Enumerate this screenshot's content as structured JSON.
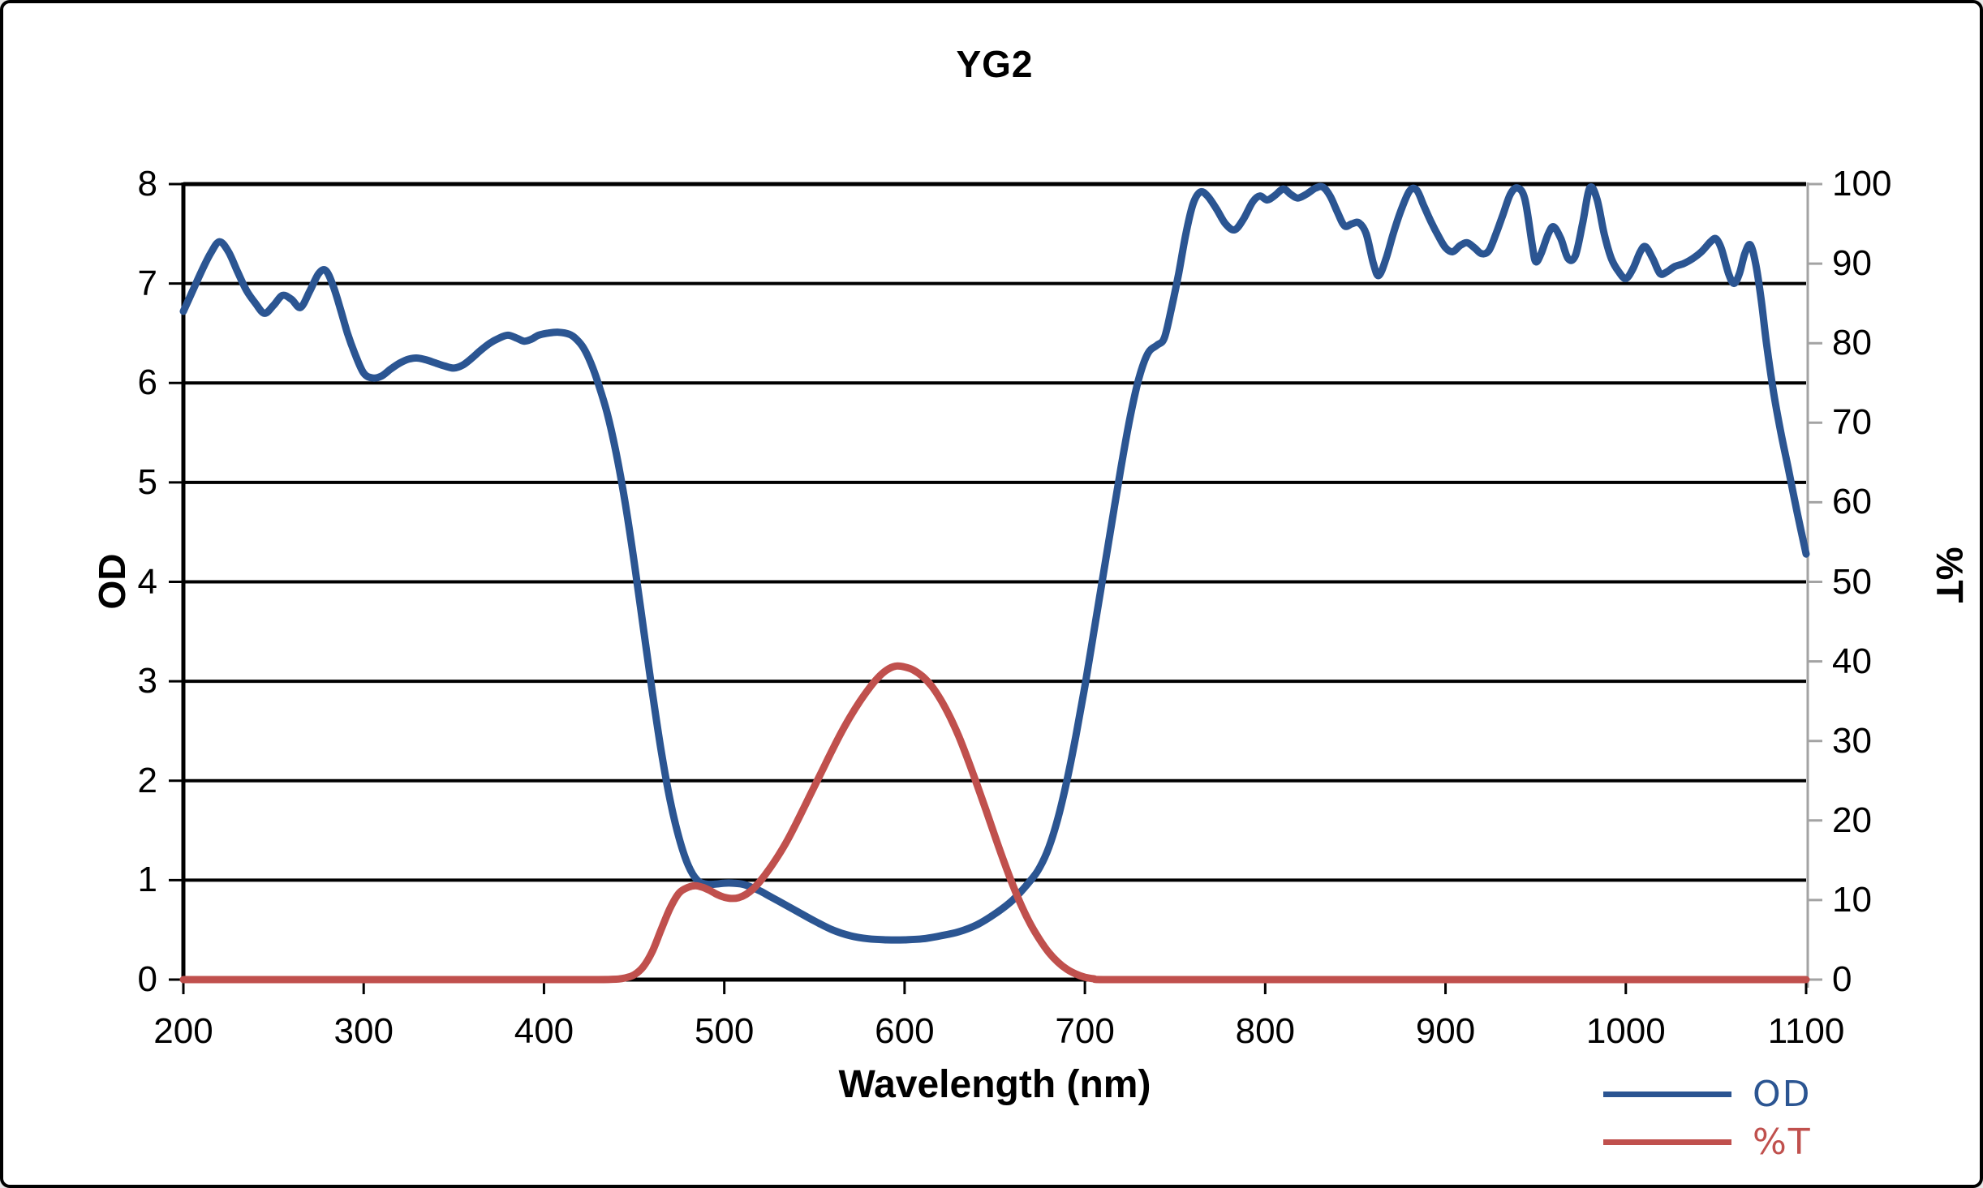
{
  "page": {
    "background": "#ffffff",
    "frame_border_color": "#000000"
  },
  "chart_data": {
    "type": "line",
    "title": "YG2",
    "xlabel": "Wavelength (nm)",
    "ylabel_left": "OD",
    "ylabel_right": "%T",
    "xlim": [
      200,
      1100
    ],
    "ylim_left": [
      0,
      8
    ],
    "ylim_right": [
      0,
      100
    ],
    "x_ticks": [
      200,
      300,
      400,
      500,
      600,
      700,
      800,
      900,
      1000,
      1100
    ],
    "y_left_ticks": [
      0,
      1,
      2,
      3,
      4,
      5,
      6,
      7,
      8
    ],
    "y_right_ticks": [
      0,
      10,
      20,
      30,
      40,
      50,
      60,
      70,
      80,
      90,
      100
    ],
    "grid": "horizontal black gridlines at each left-axis integer",
    "legend_position": "bottom-right",
    "colors": {
      "od_line": "#2B5592",
      "t_line": "#C0504D",
      "gridline": "#000000",
      "right_axis": "#A3A3A3",
      "text": "#000000"
    },
    "legend": [
      {
        "label": "OD",
        "color": "#2B5592"
      },
      {
        "label": "%T",
        "color": "#C0504D"
      }
    ],
    "series": [
      {
        "name": "OD",
        "axis": "left",
        "color": "#2B5592",
        "x": [
          200,
          205,
          210,
          215,
          220,
          225,
          230,
          235,
          240,
          245,
          250,
          255,
          260,
          265,
          270,
          275,
          279,
          283,
          287,
          291,
          295,
          300,
          305,
          310,
          315,
          320,
          325,
          330,
          335,
          340,
          345,
          350,
          355,
          360,
          365,
          370,
          375,
          380,
          385,
          389,
          393,
          397,
          402,
          408,
          414,
          418,
          422,
          426,
          430,
          435,
          440,
          445,
          450,
          455,
          460,
          465,
          470,
          475,
          480,
          485,
          490,
          495,
          500,
          505,
          510,
          515,
          520,
          525,
          530,
          540,
          550,
          560,
          570,
          580,
          590,
          600,
          610,
          620,
          630,
          640,
          650,
          660,
          670,
          675,
          680,
          685,
          690,
          695,
          700,
          705,
          710,
          715,
          720,
          725,
          730,
          735,
          740,
          744,
          748,
          752,
          756,
          760,
          764,
          768,
          773,
          778,
          783,
          788,
          793,
          797,
          801,
          805,
          810,
          814,
          818,
          823,
          828,
          832,
          836,
          840,
          844,
          848,
          852,
          856,
          860,
          863,
          867,
          871,
          875,
          880,
          884,
          888,
          892,
          896,
          900,
          904,
          908,
          912,
          916,
          920,
          924,
          928,
          932,
          936,
          940,
          944,
          948,
          950,
          953,
          957,
          960,
          964,
          968,
          972,
          976,
          980,
          984,
          988,
          992,
          996,
          1000,
          1004,
          1008,
          1011,
          1015,
          1019,
          1023,
          1027,
          1032,
          1037,
          1042,
          1047,
          1050,
          1053,
          1057,
          1060,
          1063,
          1066,
          1069,
          1072,
          1075,
          1078,
          1082,
          1086,
          1090,
          1095,
          1100
        ],
        "y": [
          6.72,
          6.92,
          7.12,
          7.3,
          7.42,
          7.32,
          7.12,
          6.93,
          6.8,
          6.7,
          6.78,
          6.88,
          6.84,
          6.76,
          6.92,
          7.1,
          7.13,
          6.98,
          6.75,
          6.5,
          6.3,
          6.1,
          6.05,
          6.07,
          6.14,
          6.2,
          6.24,
          6.25,
          6.23,
          6.2,
          6.17,
          6.15,
          6.18,
          6.25,
          6.33,
          6.4,
          6.45,
          6.48,
          6.45,
          6.42,
          6.44,
          6.48,
          6.5,
          6.51,
          6.49,
          6.44,
          6.35,
          6.2,
          6.0,
          5.7,
          5.3,
          4.8,
          4.2,
          3.55,
          2.9,
          2.3,
          1.8,
          1.42,
          1.15,
          1.0,
          0.96,
          0.96,
          0.97,
          0.97,
          0.96,
          0.93,
          0.89,
          0.84,
          0.79,
          0.69,
          0.59,
          0.5,
          0.44,
          0.41,
          0.4,
          0.4,
          0.41,
          0.44,
          0.48,
          0.55,
          0.66,
          0.8,
          1.0,
          1.13,
          1.33,
          1.62,
          2.0,
          2.45,
          2.95,
          3.5,
          4.05,
          4.6,
          5.15,
          5.65,
          6.05,
          6.3,
          6.38,
          6.45,
          6.75,
          7.1,
          7.5,
          7.8,
          7.92,
          7.88,
          7.75,
          7.6,
          7.54,
          7.65,
          7.82,
          7.88,
          7.84,
          7.88,
          7.95,
          7.9,
          7.86,
          7.9,
          7.96,
          7.97,
          7.88,
          7.72,
          7.58,
          7.6,
          7.61,
          7.5,
          7.2,
          7.08,
          7.25,
          7.5,
          7.72,
          7.93,
          7.94,
          7.78,
          7.62,
          7.48,
          7.36,
          7.32,
          7.38,
          7.41,
          7.36,
          7.3,
          7.33,
          7.5,
          7.7,
          7.9,
          7.96,
          7.85,
          7.4,
          7.22,
          7.3,
          7.5,
          7.57,
          7.45,
          7.25,
          7.28,
          7.6,
          7.96,
          7.85,
          7.5,
          7.25,
          7.12,
          7.05,
          7.15,
          7.32,
          7.37,
          7.25,
          7.1,
          7.12,
          7.17,
          7.2,
          7.25,
          7.32,
          7.42,
          7.45,
          7.35,
          7.1,
          7.0,
          7.1,
          7.3,
          7.39,
          7.2,
          6.85,
          6.4,
          5.9,
          5.5,
          5.15,
          4.7,
          4.28
        ]
      },
      {
        "name": "%T",
        "axis": "right",
        "color": "#C0504D",
        "x": [
          200,
          250,
          300,
          350,
          400,
          430,
          440,
          445,
          450,
          455,
          460,
          465,
          470,
          475,
          480,
          484,
          488,
          492,
          496,
          500,
          504,
          508,
          512,
          516,
          520,
          525,
          530,
          535,
          540,
          545,
          550,
          555,
          560,
          565,
          570,
          575,
          580,
          585,
          590,
          595,
          600,
          605,
          610,
          615,
          620,
          625,
          630,
          635,
          640,
          645,
          650,
          655,
          660,
          665,
          670,
          675,
          680,
          685,
          690,
          695,
          700,
          705,
          710,
          750,
          800,
          900,
          1000,
          1100
        ],
        "y": [
          0,
          0,
          0,
          0,
          0,
          0,
          0.05,
          0.2,
          0.6,
          1.6,
          3.5,
          6.3,
          9.0,
          10.9,
          11.6,
          11.8,
          11.6,
          11.2,
          10.7,
          10.35,
          10.2,
          10.3,
          10.7,
          11.4,
          12.4,
          13.9,
          15.6,
          17.5,
          19.7,
          22.0,
          24.3,
          26.6,
          28.9,
          31.1,
          33.1,
          34.9,
          36.5,
          37.9,
          38.9,
          39.4,
          39.3,
          38.9,
          38.1,
          36.9,
          35.2,
          33.1,
          30.6,
          27.7,
          24.6,
          21.4,
          18.1,
          14.9,
          11.9,
          9.2,
          6.9,
          5.0,
          3.4,
          2.2,
          1.3,
          0.7,
          0.3,
          0.1,
          0,
          0,
          0,
          0,
          0,
          0
        ]
      }
    ]
  }
}
